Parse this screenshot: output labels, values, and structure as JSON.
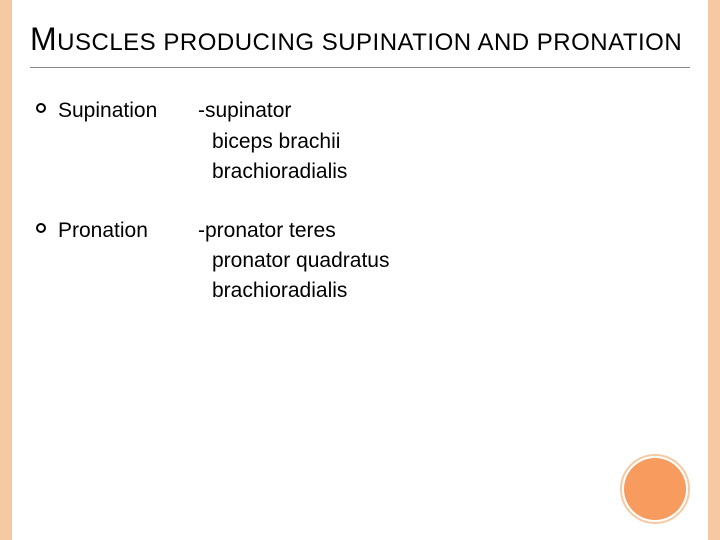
{
  "colors": {
    "stripe": "#f6c9a3",
    "accent_fill": "#f79b5e",
    "accent_ring": "#f6c9a3",
    "background": "#ffffff",
    "text": "#000000"
  },
  "title": {
    "first_letter": "M",
    "rest": "USCLES PRODUCING SUPINATION AND PRONATION"
  },
  "items": [
    {
      "label": "Supination",
      "first": "-supinator",
      "rest": [
        "biceps brachii",
        "brachioradialis"
      ]
    },
    {
      "label": "Pronation",
      "first": "-pronator teres",
      "rest": [
        "pronator quadratus",
        "brachioradialis"
      ]
    }
  ]
}
